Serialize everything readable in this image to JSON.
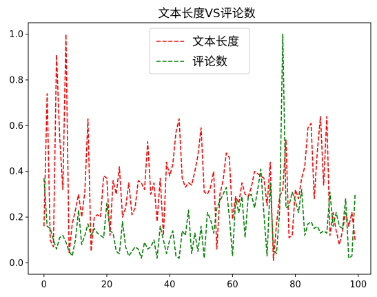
{
  "chart_data": {
    "type": "line",
    "title": "文本长度VS评论数",
    "xlabel": "",
    "ylabel": "",
    "xlim": [
      -5,
      104
    ],
    "ylim": [
      -0.05,
      1.05
    ],
    "xticks": [
      0,
      20,
      40,
      60,
      80,
      100
    ],
    "yticks": [
      0.0,
      0.2,
      0.4,
      0.6,
      0.8,
      1.0
    ],
    "xtick_labels": [
      "0",
      "20",
      "40",
      "60",
      "80",
      "100"
    ],
    "ytick_labels": [
      "0.0",
      "0.2",
      "0.4",
      "0.6",
      "0.8",
      "1.0"
    ],
    "legend_position": "top-center",
    "grid": false,
    "series": [
      {
        "name": "文本长度",
        "color": "#ff0000",
        "style": "dashed",
        "x": [
          0,
          1,
          2,
          3,
          4,
          5,
          6,
          7,
          8,
          9,
          10,
          11,
          12,
          13,
          14,
          15,
          16,
          17,
          18,
          19,
          20,
          21,
          22,
          23,
          24,
          25,
          26,
          27,
          28,
          29,
          30,
          31,
          32,
          33,
          34,
          35,
          36,
          37,
          38,
          39,
          40,
          41,
          42,
          43,
          44,
          45,
          46,
          47,
          48,
          49,
          50,
          51,
          52,
          53,
          54,
          55,
          56,
          57,
          58,
          59,
          60,
          61,
          62,
          63,
          64,
          65,
          66,
          67,
          68,
          69,
          70,
          71,
          72,
          73,
          74,
          75,
          76,
          77,
          78,
          79,
          80,
          81,
          82,
          83,
          84,
          85,
          86,
          87,
          88,
          89,
          90,
          91,
          92,
          93,
          94,
          95,
          96,
          97,
          98,
          99
        ],
        "values": [
          0.16,
          0.74,
          0.1,
          0.07,
          0.91,
          0.55,
          0.32,
          1.0,
          0.04,
          0.17,
          0.23,
          0.3,
          0.2,
          0.31,
          0.63,
          0.05,
          0.2,
          0.21,
          0.2,
          0.38,
          0.37,
          0.12,
          0.36,
          0.3,
          0.42,
          0.2,
          0.24,
          0.35,
          0.21,
          0.24,
          0.36,
          0.35,
          0.32,
          0.53,
          0.3,
          0.35,
          0.18,
          0.37,
          0.12,
          0.44,
          0.38,
          0.43,
          0.57,
          0.63,
          0.37,
          0.33,
          0.35,
          0.34,
          0.4,
          0.47,
          0.59,
          0.31,
          0.3,
          0.33,
          0.4,
          0.06,
          0.3,
          0.36,
          0.48,
          0.46,
          0.19,
          0.29,
          0.26,
          0.35,
          0.3,
          0.29,
          0.33,
          0.4,
          0.39,
          0.38,
          0.37,
          0.25,
          0.44,
          0.01,
          0.17,
          0.29,
          0.32,
          0.54,
          0.11,
          0.12,
          0.32,
          0.28,
          0.37,
          0.42,
          0.59,
          0.61,
          0.28,
          0.49,
          0.64,
          0.34,
          0.64,
          0.12,
          0.22,
          0.14,
          0.08,
          0.14,
          0.22,
          0.16,
          0.22,
          0.1
        ]
      },
      {
        "name": "评论数",
        "color": "#008000",
        "style": "dashed",
        "x": [
          0,
          1,
          2,
          3,
          4,
          5,
          6,
          7,
          8,
          9,
          10,
          11,
          12,
          13,
          14,
          15,
          16,
          17,
          18,
          19,
          20,
          21,
          22,
          23,
          24,
          25,
          26,
          27,
          28,
          29,
          30,
          31,
          32,
          33,
          34,
          35,
          36,
          37,
          38,
          39,
          40,
          41,
          42,
          43,
          44,
          45,
          46,
          47,
          48,
          49,
          50,
          51,
          52,
          53,
          54,
          55,
          56,
          57,
          58,
          59,
          60,
          61,
          62,
          63,
          64,
          65,
          66,
          67,
          68,
          69,
          70,
          71,
          72,
          73,
          74,
          75,
          76,
          77,
          78,
          79,
          80,
          81,
          82,
          83,
          84,
          85,
          86,
          87,
          88,
          89,
          90,
          91,
          92,
          93,
          94,
          95,
          96,
          97,
          98,
          99
        ],
        "values": [
          0.37,
          0.16,
          0.15,
          0.1,
          0.06,
          0.11,
          0.12,
          0.09,
          0.05,
          0.03,
          0.1,
          0.23,
          0.08,
          0.12,
          0.17,
          0.12,
          0.15,
          0.13,
          0.12,
          0.11,
          0.26,
          0.14,
          0.13,
          0.05,
          0.04,
          0.18,
          0.07,
          0.03,
          0.05,
          0.07,
          0.06,
          0.02,
          0.09,
          0.06,
          0.07,
          0.1,
          0.02,
          0.16,
          0.1,
          0.04,
          0.1,
          0.14,
          0.03,
          0.02,
          0.14,
          0.12,
          0.23,
          0.04,
          0.13,
          0.05,
          0.16,
          0.02,
          0.22,
          0.19,
          0.13,
          0.24,
          0.27,
          0.3,
          0.33,
          0.2,
          0.03,
          0.28,
          0.22,
          0.29,
          0.11,
          0.29,
          0.3,
          0.24,
          0.32,
          0.41,
          0.21,
          0.03,
          0.35,
          0.06,
          0.04,
          0.23,
          1.0,
          0.24,
          0.25,
          0.31,
          0.27,
          0.22,
          0.32,
          0.12,
          0.17,
          0.18,
          0.15,
          0.16,
          0.13,
          0.14,
          0.13,
          0.31,
          0.16,
          0.22,
          0.16,
          0.15,
          0.28,
          0.02,
          0.03,
          0.3
        ]
      }
    ]
  }
}
